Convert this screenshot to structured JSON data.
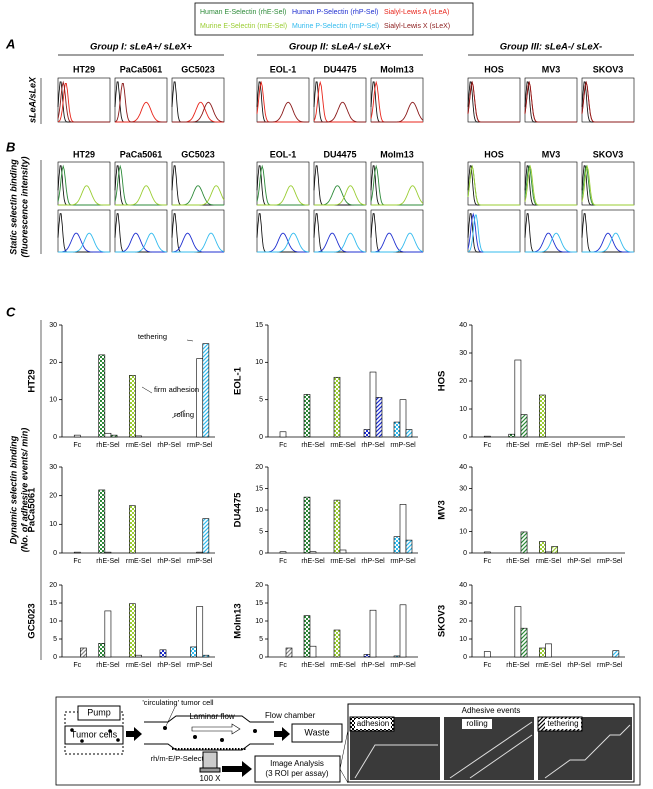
{
  "legend": [
    {
      "label": "Human E-Selectin (rhE-Sel)",
      "color": "#2e8b3a"
    },
    {
      "label": "Human P-Selectin (rhP-Sel)",
      "color": "#1f2fd0"
    },
    {
      "label": "Sialyl-Lewis A (sLeA)",
      "color": "#e8251b"
    },
    {
      "label": "Murine E-Selectin (rmE-Sel)",
      "color": "#9acd32"
    },
    {
      "label": "Murine P-Selectin (rmP-Sel)",
      "color": "#33bbee"
    },
    {
      "label": "Sialyl-Lewis X (sLeX)",
      "color": "#8b1a1a"
    }
  ],
  "panel_letters": [
    "A",
    "B",
    "C"
  ],
  "groups": [
    "Group I: sLeA+/ sLeX+",
    "Group II: sLeA-/ sLeX+",
    "Group III: sLeA-/ sLeX-"
  ],
  "cell_lines": [
    "HT29",
    "PaCa5061",
    "GC5023",
    "EOL-1",
    "DU4475",
    "Molm13",
    "HOS",
    "MV3",
    "SKOV3"
  ],
  "row_labels": {
    "A": [
      "sLeA/sLeX"
    ],
    "B": [
      "Static selectin binding",
      "(fluorescence intensity)"
    ],
    "C": [
      "Dynamic selectin binding",
      "(No. of adhesive events/ min)"
    ]
  },
  "histograms": [
    {
      "colors": [
        "#e8251b",
        "#8b1a1a"
      ],
      "peaks": [
        [
          0.15,
          0.1
        ],
        [
          0.6,
          0.15
        ],
        [
          0.55,
          0.7
        ],
        [
          0.08,
          0.6
        ],
        [
          0.12,
          0.55
        ],
        [
          0.1,
          0.8
        ],
        [
          0.08,
          0.08
        ],
        [
          0.08,
          0.08
        ],
        [
          0.08,
          0.08
        ]
      ]
    },
    {
      "colors": [
        "#2e8b3a",
        "#9acd32"
      ],
      "peaks": [
        [
          0.1,
          0.55
        ],
        [
          0.1,
          0.6
        ],
        [
          0.5,
          0.85
        ],
        [
          0.1,
          0.65
        ],
        [
          0.45,
          0.7
        ],
        [
          0.1,
          0.8
        ],
        [
          0.08,
          0.08
        ],
        [
          0.08,
          0.1
        ],
        [
          0.08,
          0.1
        ]
      ]
    },
    {
      "colors": [
        "#1f2fd0",
        "#33bbee"
      ],
      "peaks": [
        [
          0.35,
          0.6
        ],
        [
          0.4,
          0.7
        ],
        [
          0.3,
          0.75
        ],
        [
          0.5,
          0.7
        ],
        [
          0.35,
          0.7
        ],
        [
          0.35,
          0.75
        ],
        [
          0.1,
          0.15
        ],
        [
          0.45,
          0.6
        ],
        [
          0.5,
          0.65
        ]
      ]
    }
  ],
  "chart_data": [
    {
      "type": "bar",
      "title": "HT29",
      "categories": [
        "Fc",
        "rhE-Sel",
        "rmE-Sel",
        "rhP-Sel",
        "rmP-Sel"
      ],
      "category_colors": [
        "#888888",
        "#2e8b3a",
        "#9acd32",
        "#1f2fd0",
        "#33bbee"
      ],
      "ylim": [
        0,
        30
      ],
      "yticks": [
        0,
        10,
        20,
        30
      ],
      "series": [
        {
          "pattern": "checker",
          "values": [
            null,
            22,
            16.5,
            null,
            null
          ]
        },
        {
          "pattern": "solid",
          "values": [
            0.5,
            1,
            0.3,
            null,
            21
          ]
        },
        {
          "pattern": "hatch",
          "values": [
            null,
            0.5,
            null,
            null,
            25
          ]
        }
      ],
      "annotations": [
        "tethering",
        "firm adhesion",
        "rolling"
      ]
    },
    {
      "type": "bar",
      "title": "EOL-1",
      "categories": [
        "Fc",
        "rhE-Sel",
        "rmE-Sel",
        "rhP-Sel",
        "rmP-Sel"
      ],
      "category_colors": [
        "#888888",
        "#2e8b3a",
        "#9acd32",
        "#1f2fd0",
        "#33bbee"
      ],
      "ylim": [
        0,
        15
      ],
      "yticks": [
        0,
        5,
        10,
        15
      ],
      "series": [
        {
          "pattern": "checker",
          "values": [
            null,
            5.7,
            8,
            1,
            2
          ]
        },
        {
          "pattern": "solid",
          "values": [
            0.7,
            null,
            null,
            8.7,
            5
          ]
        },
        {
          "pattern": "hatch",
          "values": [
            null,
            null,
            null,
            5.3,
            1
          ]
        }
      ]
    },
    {
      "type": "bar",
      "title": "HOS",
      "categories": [
        "Fc",
        "rhE-Sel",
        "rmE-Sel",
        "rhP-Sel",
        "rmP-Sel"
      ],
      "category_colors": [
        "#888888",
        "#2e8b3a",
        "#9acd32",
        "#1f2fd0",
        "#33bbee"
      ],
      "ylim": [
        0,
        40
      ],
      "yticks": [
        0,
        10,
        20,
        30,
        40
      ],
      "series": [
        {
          "pattern": "checker",
          "values": [
            null,
            1,
            15,
            null,
            null
          ]
        },
        {
          "pattern": "solid",
          "values": [
            0.3,
            27.5,
            null,
            null,
            null
          ]
        },
        {
          "pattern": "hatch",
          "values": [
            null,
            8,
            null,
            null,
            null
          ]
        }
      ]
    },
    {
      "type": "bar",
      "title": "PaCa5061",
      "categories": [
        "Fc",
        "rhE-Sel",
        "rmE-Sel",
        "rhP-Sel",
        "rmP-Sel"
      ],
      "category_colors": [
        "#888888",
        "#2e8b3a",
        "#9acd32",
        "#1f2fd0",
        "#33bbee"
      ],
      "ylim": [
        0,
        30
      ],
      "yticks": [
        0,
        10,
        20,
        30
      ],
      "series": [
        {
          "pattern": "checker",
          "values": [
            null,
            22,
            16.5,
            null,
            null
          ]
        },
        {
          "pattern": "solid",
          "values": [
            0.3,
            0.3,
            null,
            null,
            0.3
          ]
        },
        {
          "pattern": "hatch",
          "values": [
            null,
            null,
            null,
            null,
            12
          ]
        }
      ]
    },
    {
      "type": "bar",
      "title": "DU4475",
      "categories": [
        "Fc",
        "rhE-Sel",
        "rmE-Sel",
        "rhP-Sel",
        "rmP-Sel"
      ],
      "category_colors": [
        "#888888",
        "#2e8b3a",
        "#9acd32",
        "#1f2fd0",
        "#33bbee"
      ],
      "ylim": [
        0,
        20
      ],
      "yticks": [
        0,
        5,
        10,
        15,
        20
      ],
      "series": [
        {
          "pattern": "checker",
          "values": [
            null,
            13,
            12.3,
            null,
            3.8
          ]
        },
        {
          "pattern": "solid",
          "values": [
            0.3,
            0.3,
            0.7,
            null,
            11.3
          ]
        },
        {
          "pattern": "hatch",
          "values": [
            null,
            null,
            null,
            null,
            3
          ]
        }
      ]
    },
    {
      "type": "bar",
      "title": "MV3",
      "categories": [
        "Fc",
        "rhE-Sel",
        "rmE-Sel",
        "rhP-Sel",
        "rmP-Sel"
      ],
      "category_colors": [
        "#888888",
        "#2e8b3a",
        "#9acd32",
        "#1f2fd0",
        "#33bbee"
      ],
      "ylim": [
        0,
        40
      ],
      "yticks": [
        0,
        10,
        20,
        30,
        40
      ],
      "series": [
        {
          "pattern": "checker",
          "values": [
            null,
            null,
            5.3,
            null,
            null
          ]
        },
        {
          "pattern": "solid",
          "values": [
            0.5,
            null,
            0.5,
            null,
            null
          ]
        },
        {
          "pattern": "hatch",
          "values": [
            null,
            9.8,
            3,
            null,
            null
          ]
        }
      ]
    },
    {
      "type": "bar",
      "title": "GC5023",
      "categories": [
        "Fc",
        "rhE-Sel",
        "rmE-Sel",
        "rhP-Sel",
        "rmP-Sel"
      ],
      "category_colors": [
        "#888888",
        "#2e8b3a",
        "#9acd32",
        "#1f2fd0",
        "#33bbee"
      ],
      "ylim": [
        0,
        20
      ],
      "yticks": [
        0,
        5,
        10,
        15,
        20
      ],
      "series": [
        {
          "pattern": "checker",
          "values": [
            null,
            3.8,
            14.8,
            2,
            2.8
          ]
        },
        {
          "pattern": "solid",
          "values": [
            null,
            12.8,
            0.5,
            null,
            14
          ]
        },
        {
          "pattern": "hatch",
          "values": [
            2.5,
            null,
            null,
            null,
            0.5
          ]
        }
      ]
    },
    {
      "type": "bar",
      "title": "Molm13",
      "categories": [
        "Fc",
        "rhE-Sel",
        "rmE-Sel",
        "rhP-Sel",
        "rmP-Sel"
      ],
      "category_colors": [
        "#888888",
        "#2e8b3a",
        "#9acd32",
        "#1f2fd0",
        "#33bbee"
      ],
      "ylim": [
        0,
        20
      ],
      "yticks": [
        0,
        5,
        10,
        15,
        20
      ],
      "series": [
        {
          "pattern": "checker",
          "values": [
            null,
            11.5,
            7.5,
            0.7,
            0.3
          ]
        },
        {
          "pattern": "solid",
          "values": [
            null,
            3,
            null,
            13,
            14.5
          ]
        },
        {
          "pattern": "hatch",
          "values": [
            2.5,
            null,
            null,
            null,
            null
          ]
        }
      ]
    },
    {
      "type": "bar",
      "title": "SKOV3",
      "categories": [
        "Fc",
        "rhE-Sel",
        "rmE-Sel",
        "rhP-Sel",
        "rmP-Sel"
      ],
      "category_colors": [
        "#888888",
        "#2e8b3a",
        "#9acd32",
        "#1f2fd0",
        "#33bbee"
      ],
      "ylim": [
        0,
        40
      ],
      "yticks": [
        0,
        10,
        20,
        30,
        40
      ],
      "series": [
        {
          "pattern": "checker",
          "values": [
            null,
            null,
            5,
            null,
            null
          ]
        },
        {
          "pattern": "solid",
          "values": [
            3,
            28,
            7.3,
            null,
            null
          ]
        },
        {
          "pattern": "hatch",
          "values": [
            null,
            16,
            null,
            null,
            3.5
          ]
        }
      ]
    }
  ],
  "diagram": {
    "pump": "Pump",
    "tumor_cell": "'circulating' tumor cell",
    "laminar_flow": "Laminar flow",
    "flow_chamber": "Flow chamber",
    "tumor_cells": "Tumor cells",
    "waste": "Waste",
    "selectin": "rh/m-E/P-Selectin",
    "magnification": "100 X",
    "image_analysis": "Image Analysis",
    "roi": "(3 ROI per assay)",
    "events_title": "Adhesive events",
    "events": [
      "adhesion",
      "rolling",
      "tethering"
    ]
  }
}
